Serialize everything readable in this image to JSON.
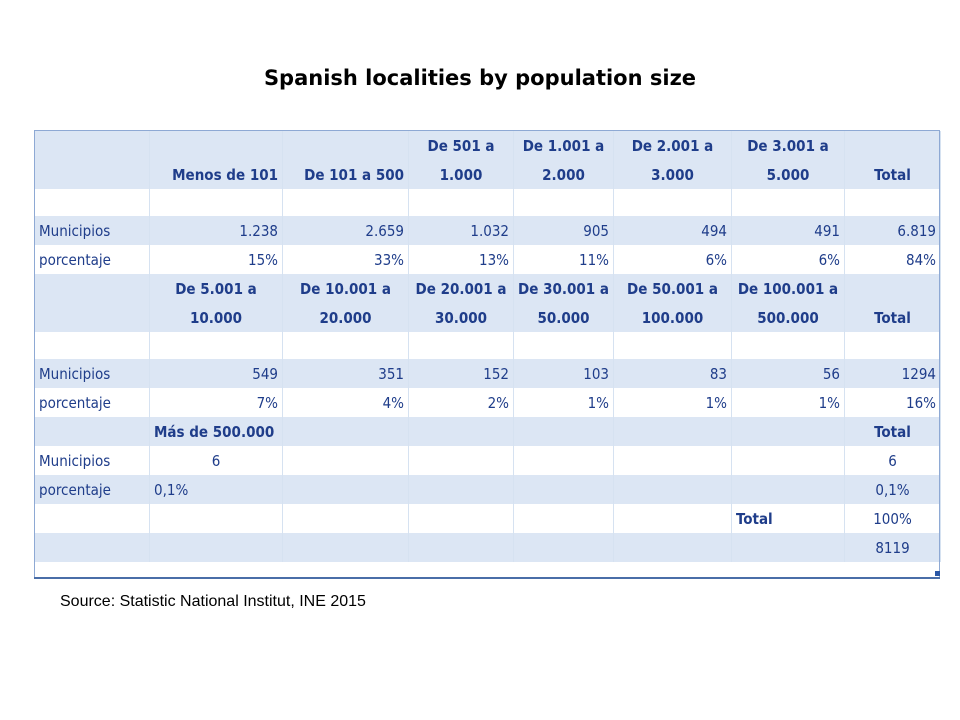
{
  "title": "Spanish localities by population size",
  "source": "Source: Statistic National Institut, INE 2015",
  "colors": {
    "header_blue": "#dce6f4",
    "text_blue": "#1f3d8a"
  },
  "block1": {
    "headers_top": [
      "",
      "",
      "",
      "De 501 a",
      "De  1.001 a",
      "De 2.001 a",
      "De 3.001 a",
      ""
    ],
    "headers_bottom": [
      "",
      "Menos de 101",
      "De 101 a 500",
      "1.000",
      "2.000",
      "3.000",
      "5.000",
      "Total"
    ],
    "municipios": [
      "Municipios",
      "1.238",
      "2.659",
      "1.032",
      "905",
      "494",
      "491",
      "6.819"
    ],
    "porcentaje": [
      "porcentaje",
      "15%",
      "33%",
      "13%",
      "11%",
      "6%",
      "6%",
      "84%"
    ]
  },
  "block2": {
    "headers_top": [
      "",
      "De 5.001 a",
      "De 10.001 a",
      "De 20.001 a",
      "De 30.001 a",
      "De 50.001 a",
      "De 100.001 a",
      ""
    ],
    "headers_bottom": [
      "",
      "10.000",
      "20.000",
      "30.000",
      "50.000",
      "100.000",
      "500.000",
      "Total"
    ],
    "municipios": [
      "Municipios",
      "549",
      "351",
      "152",
      "103",
      "83",
      "56",
      "1294"
    ],
    "porcentaje": [
      "porcentaje",
      "7%",
      "4%",
      "2%",
      "1%",
      "1%",
      "1%",
      "16%"
    ]
  },
  "block3": {
    "header": [
      "",
      "Más de 500.000",
      "",
      "",
      "",
      "",
      "",
      "Total"
    ],
    "municipios": [
      "Municipios",
      "6",
      "",
      "",
      "",
      "",
      "",
      "6"
    ],
    "porcentaje": [
      "porcentaje",
      "0,1%",
      "",
      "",
      "",
      "",
      "",
      "0,1%"
    ]
  },
  "totals": {
    "total_label": "Total",
    "total_pct": "100%",
    "grand_total": "8119"
  }
}
